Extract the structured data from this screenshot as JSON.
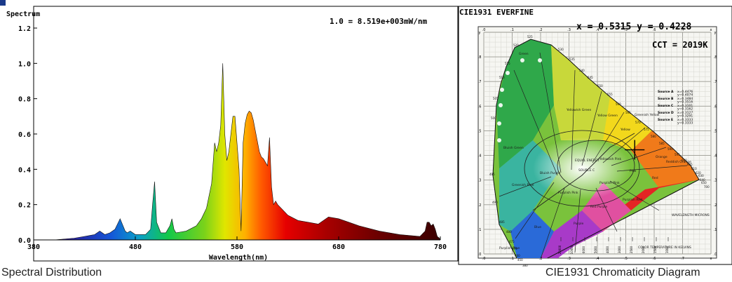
{
  "captions": {
    "left": "Spectral Distribution",
    "right": "CIE1931 Chromaticity Diagram"
  },
  "chart_data": [
    {
      "type": "area",
      "title": "Spectrum",
      "annotation": "1.0 = 8.519e+003mW/nm",
      "xlabel": "Wavelength(nm)",
      "ylabel": "",
      "xlim": [
        380,
        780
      ],
      "ylim": [
        0,
        1.2
      ],
      "x_ticks": [
        380,
        480,
        580,
        680,
        780
      ],
      "y_ticks": [
        "0.0",
        "0.2",
        "0.4",
        "0.6",
        "0.8",
        "1.0",
        "1.2"
      ],
      "grid": false,
      "x": [
        380,
        400,
        420,
        430,
        440,
        445,
        450,
        455,
        460,
        465,
        470,
        472,
        475,
        480,
        490,
        495,
        497,
        499,
        501,
        505,
        510,
        514,
        516,
        518,
        520,
        530,
        540,
        545,
        550,
        555,
        558,
        560,
        562,
        564,
        566,
        568,
        570,
        572,
        574,
        576,
        578,
        580,
        582,
        584,
        586,
        588,
        590,
        592,
        594,
        596,
        598,
        600,
        602,
        604,
        606,
        608,
        610,
        612,
        614,
        616,
        618,
        620,
        625,
        630,
        640,
        650,
        660,
        670,
        680,
        690,
        700,
        720,
        740,
        760,
        765,
        767,
        769,
        771,
        773,
        775,
        777,
        779,
        780
      ],
      "values": [
        0.0,
        0.0,
        0.01,
        0.02,
        0.03,
        0.05,
        0.03,
        0.04,
        0.06,
        0.12,
        0.05,
        0.04,
        0.05,
        0.03,
        0.03,
        0.06,
        0.2,
        0.33,
        0.1,
        0.04,
        0.04,
        0.08,
        0.12,
        0.06,
        0.04,
        0.05,
        0.08,
        0.12,
        0.18,
        0.32,
        0.55,
        0.5,
        0.55,
        0.65,
        1.0,
        0.6,
        0.45,
        0.5,
        0.6,
        0.7,
        0.7,
        0.55,
        0.4,
        0.05,
        0.55,
        0.66,
        0.71,
        0.73,
        0.72,
        0.68,
        0.62,
        0.56,
        0.5,
        0.47,
        0.46,
        0.44,
        0.42,
        0.58,
        0.3,
        0.2,
        0.22,
        0.2,
        0.17,
        0.14,
        0.11,
        0.1,
        0.09,
        0.13,
        0.12,
        0.1,
        0.08,
        0.05,
        0.03,
        0.02,
        0.05,
        0.1,
        0.1,
        0.08,
        0.09,
        0.06,
        0.02,
        0.01,
        0.0
      ]
    },
    {
      "type": "scatter",
      "title": "CIE1931   EVERFINE",
      "coords_label": "x = 0.5315  y = 0.4228",
      "cct_label": "CCT = 2019K",
      "x": [
        0.5315
      ],
      "y": [
        0.4228
      ],
      "xlim": [
        0,
        0.8
      ],
      "ylim": [
        0,
        0.9
      ],
      "x_ticks": [
        ".0",
        ".1",
        ".2",
        ".3",
        ".4",
        ".5",
        ".6",
        ".7",
        "x"
      ],
      "y_ticks": [
        ".0",
        ".1",
        ".2",
        ".3",
        ".4",
        ".5",
        ".6",
        ".7",
        ".8",
        "y"
      ],
      "region_labels": [
        "Green",
        "Bluish Green",
        "Yellowish Green",
        "Yellow Green",
        "Greenish Yellow",
        "Yellow",
        "Orange",
        "Reddish Orange",
        "Red",
        "Purplish Red",
        "Purple",
        "Bluish Purple",
        "Purplish Blue",
        "Blue",
        "Greenish Blue",
        "Pink",
        "Purplish Pink",
        "Red Purple",
        "Purplish Pink",
        "Yellowish Pink",
        "EQUAL ENERGY",
        "SOURCE C",
        "WAVELENGTH MICRONS",
        "COLOR TEMPERATURE IN KELVINS"
      ],
      "wavelength_labels": [
        "380",
        "450",
        "460",
        "470",
        "475",
        "480",
        "485",
        "490",
        "495",
        "500",
        "505",
        "510",
        "515",
        "520",
        "525",
        "530",
        "535",
        "540",
        "545",
        "550",
        "555",
        "560",
        "565",
        "570",
        "575",
        "580",
        "585",
        "590",
        "595",
        "600",
        "605",
        "610",
        "620",
        "630",
        "640",
        "650",
        "700"
      ],
      "legend_sources": [
        {
          "name": "Source A",
          "x": "x=0.4476",
          "y": "y=0.4074"
        },
        {
          "name": "Source B",
          "x": "x=0.3484",
          "y": "y=0.3516"
        },
        {
          "name": "Source C",
          "x": "x=0.3101",
          "y": "y=0.3162"
        },
        {
          "name": "Source D",
          "x": "x=0.3127",
          "y": "y=0.3291"
        },
        {
          "name": "Source E",
          "x": "x=0.3333",
          "y": "y=0.3333"
        }
      ],
      "temperature_ticks": [
        "20000",
        "10000",
        "6000",
        "5000",
        "4000",
        "3000",
        "2500",
        "2000",
        "1500",
        "1000"
      ]
    }
  ]
}
